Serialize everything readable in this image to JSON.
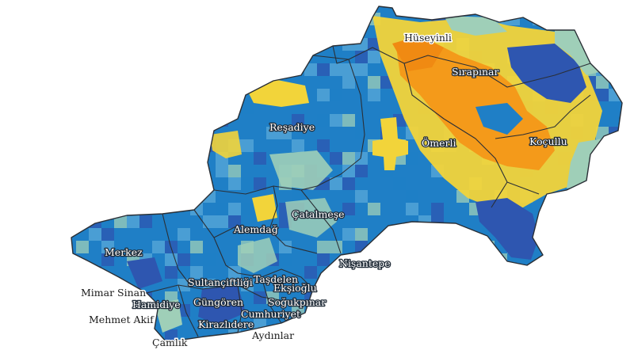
{
  "map": {
    "palette": {
      "deep_blue": "#2e56b0",
      "blue": "#1f7fc6",
      "light_blue": "#5aa8d8",
      "teal": "#9fcfb8",
      "yellow": "#f2d43a",
      "orange": "#f49a1a",
      "border": "#2a2f36",
      "background": "#ffffff"
    },
    "districts": [
      {
        "name": "Hüseyinli",
        "tone": "dark"
      },
      {
        "name": "Sırapınar",
        "tone": "light"
      },
      {
        "name": "Reşadiye",
        "tone": "light"
      },
      {
        "name": "Ömerli",
        "tone": "light"
      },
      {
        "name": "Koçullu",
        "tone": "light"
      },
      {
        "name": "Çatalmeşe",
        "tone": "light"
      },
      {
        "name": "Alemdağ",
        "tone": "light"
      },
      {
        "name": "Merkez",
        "tone": "light"
      },
      {
        "name": "Nişantepe",
        "tone": "light"
      },
      {
        "name": "Taşdelen",
        "tone": "light"
      },
      {
        "name": "Sultançiftliği",
        "tone": "light"
      },
      {
        "name": "Ekşioğlu",
        "tone": "light"
      },
      {
        "name": "Mimar Sinan",
        "tone": "dark"
      },
      {
        "name": "Hamidiye",
        "tone": "light"
      },
      {
        "name": "Güngören",
        "tone": "light"
      },
      {
        "name": "Soğukpınar",
        "tone": "light"
      },
      {
        "name": "Cumhuriyet",
        "tone": "light"
      },
      {
        "name": "Mehmet Akif",
        "tone": "dark"
      },
      {
        "name": "Kirazlıdere",
        "tone": "light"
      },
      {
        "name": "Çamlık",
        "tone": "dark"
      },
      {
        "name": "Aydınlar",
        "tone": "dark"
      }
    ]
  }
}
